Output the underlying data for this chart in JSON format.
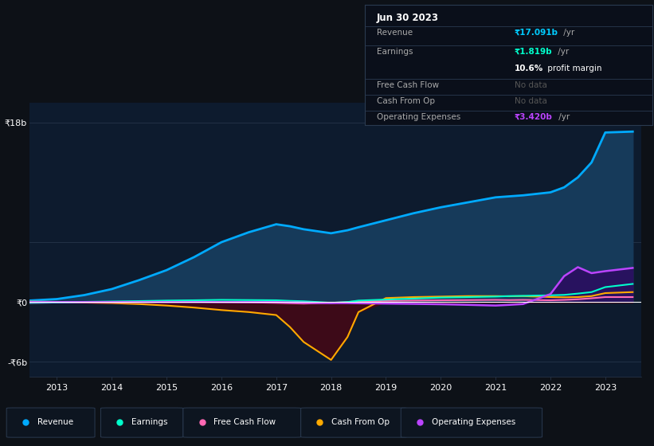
{
  "bg_color": "#0d1117",
  "chart_bg": "#0d1b2e",
  "grid_color": "#2a3a50",
  "zero_line_color": "#ffffff",
  "revenue_color": "#00aaff",
  "earnings_color": "#00ffcc",
  "fcf_color": "#ff69b4",
  "cashop_color": "#ffaa00",
  "opex_color": "#bb44ff",
  "revenue_fill": "#163a5a",
  "opex_fill": "#2a1a5e",
  "cashop_fill_neg": "#3d0a1a",
  "ylim_min": -7.5,
  "ylim_max": 20,
  "ylabel_ticks": [
    18,
    0,
    -6
  ],
  "ylabel_labels": [
    "₹18b",
    "₹0",
    "-₹6b"
  ],
  "info_box_title": "Jun 30 2023",
  "info_revenue_label": "Revenue",
  "info_revenue_val": "₹17.091b",
  "info_revenue_suffix": " /yr",
  "info_earnings_label": "Earnings",
  "info_earnings_val": "₹1.819b",
  "info_earnings_suffix": " /yr",
  "info_margin": "10.6%",
  "info_margin_suffix": " profit margin",
  "info_fcf_label": "Free Cash Flow",
  "info_fcf_val": "No data",
  "info_cashop_label": "Cash From Op",
  "info_cashop_val": "No data",
  "info_opex_label": "Operating Expenses",
  "info_opex_val": "₹3.420b",
  "info_opex_suffix": " /yr",
  "legend_items": [
    "Revenue",
    "Earnings",
    "Free Cash Flow",
    "Cash From Op",
    "Operating Expenses"
  ],
  "legend_colors": [
    "#00aaff",
    "#00ffcc",
    "#ff69b4",
    "#ffaa00",
    "#bb44ff"
  ],
  "x_ticks": [
    2013,
    2014,
    2015,
    2016,
    2017,
    2018,
    2019,
    2020,
    2021,
    2022,
    2023
  ],
  "x_tick_labels": [
    "2013",
    "2014",
    "2015",
    "2016",
    "2017",
    "2018",
    "2019",
    "2020",
    "2021",
    "2022",
    "2023"
  ]
}
